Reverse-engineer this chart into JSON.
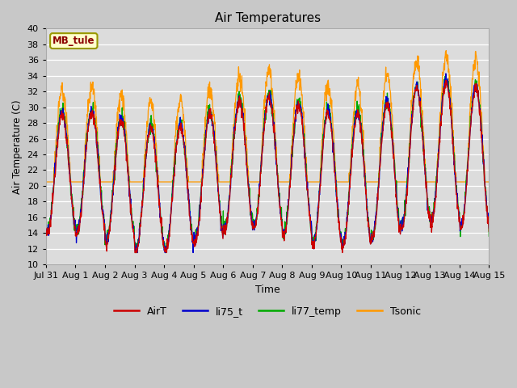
{
  "title": "Air Temperatures",
  "xlabel": "Time",
  "ylabel": "Air Temperature (C)",
  "ylim": [
    10,
    40
  ],
  "yticks": [
    10,
    12,
    14,
    16,
    18,
    20,
    22,
    24,
    26,
    28,
    30,
    32,
    34,
    36,
    38,
    40
  ],
  "station_label": "MB_tule",
  "line_colors": {
    "AirT": "#cc0000",
    "li75_t": "#0000cc",
    "li77_temp": "#00aa00",
    "Tsonic": "#ff9900"
  },
  "legend_labels": [
    "AirT",
    "li75_t",
    "li77_temp",
    "Tsonic"
  ],
  "xtick_labels": [
    "Jul 31",
    "Aug 1",
    "Aug 2",
    "Aug 3",
    "Aug 4",
    "Aug 5",
    "Aug 6",
    "Aug 7",
    "Aug 8",
    "Aug 9",
    "Aug 10",
    "Aug 11",
    "Aug 12",
    "Aug 13",
    "Aug 14",
    "Aug 15"
  ],
  "fig_width": 6.4,
  "fig_height": 4.8,
  "dpi": 100,
  "num_points": 1500,
  "seed": 12345
}
